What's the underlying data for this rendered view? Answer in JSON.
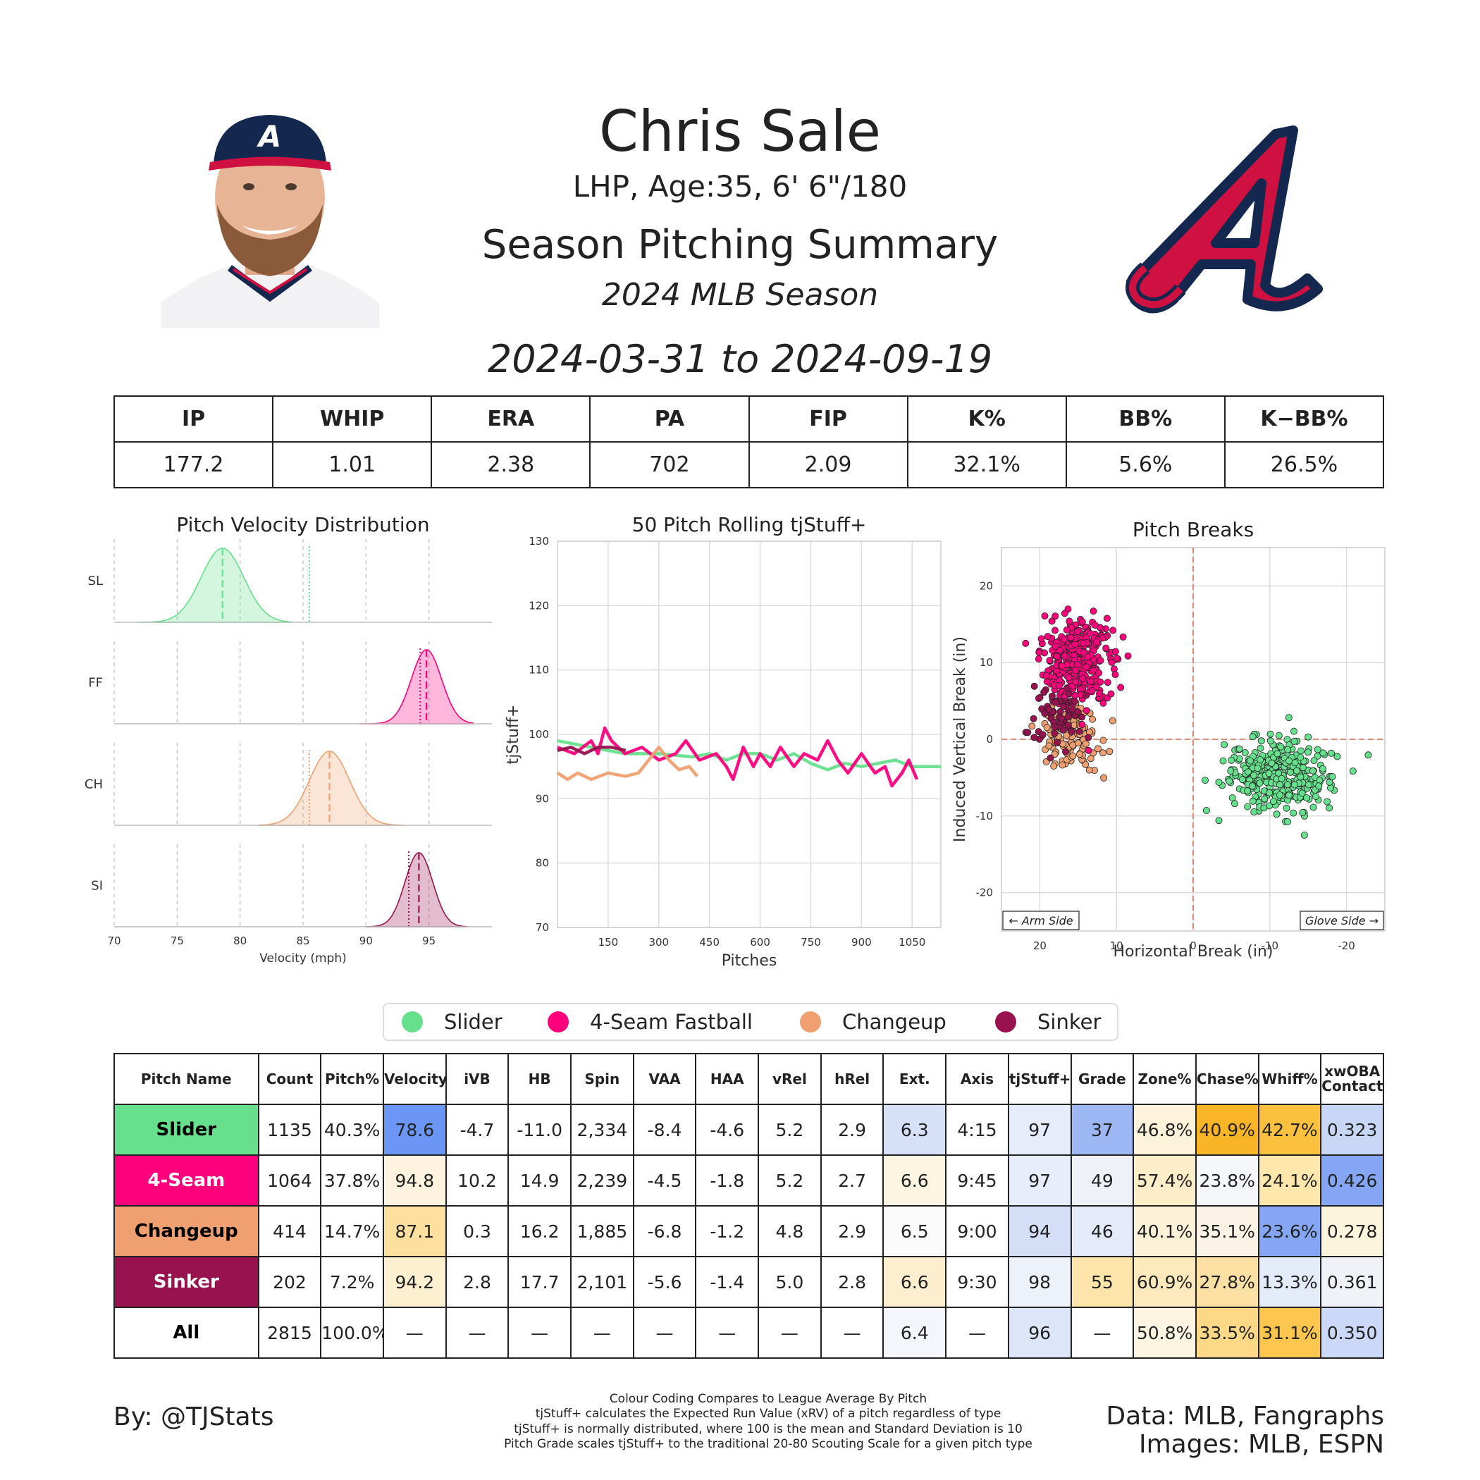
{
  "header": {
    "player_name": "Chris Sale",
    "player_info": "LHP, Age:35, 6' 6\"/180",
    "report_title": "Season Pitching Summary",
    "season": "2024 MLB Season",
    "date_range": "2024-03-31 to 2024-09-19"
  },
  "colors": {
    "Slider": "#66e08c",
    "4-Seam": "#ff007d",
    "Changeup": "#f0a070",
    "Sinker": "#981250",
    "team_primary": "#ce1141",
    "team_navy": "#13274f"
  },
  "summary": {
    "headers": [
      "IP",
      "WHIP",
      "ERA",
      "PA",
      "FIP",
      "K%",
      "BB%",
      "K−BB%"
    ],
    "values": [
      "177.2",
      "1.01",
      "2.38",
      "702",
      "2.09",
      "32.1%",
      "5.6%",
      "26.5%"
    ]
  },
  "chart_data": [
    {
      "type": "area",
      "title": "Pitch Velocity Distribution",
      "xlabel": "Velocity (mph)",
      "xlim": [
        70,
        100
      ],
      "xticks": [
        70,
        75,
        80,
        85,
        90,
        95
      ],
      "series": [
        {
          "name": "SL",
          "range": [
            72,
            84
          ],
          "mean": 78.6,
          "sd": 1.7,
          "league_avg": 85.5
        },
        {
          "name": "FF",
          "range": [
            89.5,
            98.5
          ],
          "mean": 94.8,
          "sd": 1.2,
          "league_avg": 94.3
        },
        {
          "name": "CH",
          "range": [
            81.5,
            93
          ],
          "mean": 87.1,
          "sd": 1.6,
          "league_avg": 85.5
        },
        {
          "name": "SI",
          "range": [
            90,
            98
          ],
          "mean": 94.2,
          "sd": 1.1,
          "league_avg": 93.4
        }
      ]
    },
    {
      "type": "line",
      "title": "50 Pitch Rolling tjStuff+",
      "xlabel": "Pitches",
      "ylabel": "tjStuff+",
      "xlim": [
        0,
        1135
      ],
      "ylim": [
        70,
        130
      ],
      "xticks": [
        150,
        300,
        450,
        600,
        750,
        900,
        1050
      ],
      "yticks": [
        70,
        80,
        90,
        100,
        110,
        120,
        130
      ],
      "series": [
        {
          "name": "Slider",
          "points": [
            [
              0,
              99
            ],
            [
              100,
              98
            ],
            [
              200,
              97
            ],
            [
              300,
              97
            ],
            [
              400,
              96.5
            ],
            [
              450,
              97
            ],
            [
              500,
              96
            ],
            [
              550,
              97
            ],
            [
              600,
              97
            ],
            [
              650,
              96
            ],
            [
              700,
              97
            ],
            [
              750,
              95.5
            ],
            [
              800,
              94.5
            ],
            [
              850,
              95.5
            ],
            [
              900,
              95
            ],
            [
              950,
              95.5
            ],
            [
              1000,
              96
            ],
            [
              1050,
              95
            ],
            [
              1135,
              95
            ]
          ]
        },
        {
          "name": "4-Seam Fastball",
          "points": [
            [
              0,
              98
            ],
            [
              50,
              97
            ],
            [
              100,
              99
            ],
            [
              120,
              97
            ],
            [
              140,
              101
            ],
            [
              160,
              99
            ],
            [
              200,
              97
            ],
            [
              250,
              98
            ],
            [
              300,
              96
            ],
            [
              350,
              97
            ],
            [
              380,
              99
            ],
            [
              420,
              96
            ],
            [
              470,
              97
            ],
            [
              500,
              95
            ],
            [
              520,
              93
            ],
            [
              550,
              98
            ],
            [
              580,
              95
            ],
            [
              600,
              97
            ],
            [
              630,
              95
            ],
            [
              660,
              98
            ],
            [
              700,
              95
            ],
            [
              730,
              97
            ],
            [
              770,
              96
            ],
            [
              800,
              99
            ],
            [
              830,
              96
            ],
            [
              860,
              94
            ],
            [
              900,
              97
            ],
            [
              940,
              94
            ],
            [
              970,
              95
            ],
            [
              990,
              92
            ],
            [
              1020,
              94
            ],
            [
              1040,
              96
            ],
            [
              1064,
              93
            ]
          ]
        },
        {
          "name": "Changeup",
          "points": [
            [
              0,
              94
            ],
            [
              30,
              93
            ],
            [
              60,
              94
            ],
            [
              100,
              93
            ],
            [
              150,
              94
            ],
            [
              200,
              93.5
            ],
            [
              240,
              94
            ],
            [
              270,
              96
            ],
            [
              300,
              98
            ],
            [
              330,
              96
            ],
            [
              360,
              94.5
            ],
            [
              390,
              95
            ],
            [
              414,
              93.5
            ]
          ]
        },
        {
          "name": "Sinker",
          "points": [
            [
              0,
              97.5
            ],
            [
              40,
              98
            ],
            [
              80,
              97
            ],
            [
              120,
              98
            ],
            [
              160,
              98
            ],
            [
              202,
              97.5
            ]
          ]
        }
      ]
    },
    {
      "type": "scatter",
      "title": "Pitch Breaks",
      "xlabel": "Horizontal Break (in)",
      "ylabel": "Induced Vertical Break (in)",
      "xlim": [
        25,
        -25
      ],
      "ylim": [
        -25,
        25
      ],
      "xticks": [
        20,
        10,
        0,
        -10,
        -20
      ],
      "yticks": [
        -20,
        -10,
        0,
        10,
        20
      ],
      "annotations": [
        "← Arm Side",
        "Glove Side →"
      ],
      "series": [
        {
          "name": "Slider",
          "count": 1135,
          "mean_hb": -11.0,
          "mean_ivb": -4.7
        },
        {
          "name": "4-Seam Fastball",
          "count": 1064,
          "mean_hb": 14.9,
          "mean_ivb": 10.2
        },
        {
          "name": "Changeup",
          "count": 414,
          "mean_hb": 16.2,
          "mean_ivb": 0.3
        },
        {
          "name": "Sinker",
          "count": 202,
          "mean_hb": 17.7,
          "mean_ivb": 2.8
        }
      ]
    }
  ],
  "legend": [
    "Slider",
    "4-Seam Fastball",
    "Changeup",
    "Sinker"
  ],
  "pitch_table": {
    "headers": [
      "Pitch Name",
      "Count",
      "Pitch%",
      "Velocity",
      "iVB",
      "HB",
      "Spin",
      "VAA",
      "HAA",
      "vRel",
      "hRel",
      "Ext.",
      "Axis",
      "tjStuff+",
      "Grade",
      "Zone%",
      "Chase%",
      "Whiff%",
      "xwOBA Contact"
    ],
    "rows": [
      {
        "name": "Slider",
        "cells": [
          "1135",
          "40.3%",
          "78.6",
          "-4.7",
          "-11.0",
          "2,334",
          "-8.4",
          "-4.6",
          "5.2",
          "2.9",
          "6.3",
          "4:15",
          "97",
          "37",
          "46.8%",
          "40.9%",
          "42.7%",
          "0.323"
        ]
      },
      {
        "name": "4-Seam",
        "cells": [
          "1064",
          "37.8%",
          "94.8",
          "10.2",
          "14.9",
          "2,239",
          "-4.5",
          "-1.8",
          "5.2",
          "2.7",
          "6.6",
          "9:45",
          "97",
          "49",
          "57.4%",
          "23.8%",
          "24.1%",
          "0.426"
        ]
      },
      {
        "name": "Changeup",
        "cells": [
          "414",
          "14.7%",
          "87.1",
          "0.3",
          "16.2",
          "1,885",
          "-6.8",
          "-1.2",
          "4.8",
          "2.9",
          "6.5",
          "9:00",
          "94",
          "46",
          "40.1%",
          "35.1%",
          "23.6%",
          "0.278"
        ]
      },
      {
        "name": "Sinker",
        "cells": [
          "202",
          "7.2%",
          "94.2",
          "2.8",
          "17.7",
          "2,101",
          "-5.6",
          "-1.4",
          "5.0",
          "2.8",
          "6.6",
          "9:30",
          "98",
          "55",
          "60.9%",
          "27.8%",
          "13.3%",
          "0.361"
        ]
      },
      {
        "name": "All",
        "cells": [
          "2815",
          "100.0%",
          "—",
          "—",
          "—",
          "—",
          "—",
          "—",
          "—",
          "—",
          "6.4",
          "—",
          "96",
          "—",
          "50.8%",
          "33.5%",
          "31.1%",
          "0.350"
        ]
      }
    ],
    "cell_colors": [
      [
        "",
        "",
        "#6c96f5",
        "",
        "",
        "",
        "",
        "",
        "",
        "",
        "#d6e0f7",
        "",
        "#e6ecfa",
        "#9db7f5",
        "#fdf3da",
        "#f9b526",
        "#fbc13e",
        "#c9d7f6"
      ],
      [
        "",
        "",
        "#fdf3de",
        "",
        "",
        "",
        "",
        "",
        "",
        "",
        "#fdf5e2",
        "",
        "#e7edfa",
        "#eef1f8",
        "#fdedc9",
        "#f6f7fb",
        "#fde7ad",
        "#84a6f5"
      ],
      [
        "",
        "",
        "#fde0a0",
        "",
        "",
        "",
        "",
        "",
        "",
        "",
        "#fbfbfc",
        "",
        "#d4def7",
        "#e4eafa",
        "#fdf1d8",
        "#fbf3e6",
        "#84a6f5",
        "#fdf4dd"
      ],
      [
        "",
        "",
        "#fdf0d0",
        "",
        "",
        "",
        "",
        "",
        "",
        "",
        "#fdeed0",
        "",
        "#edf1fa",
        "#fde4ab",
        "#fde9bb",
        "#fde0a4",
        "#e4ebf9",
        "#f0f2f8"
      ],
      [
        "",
        "",
        "",
        "",
        "",
        "",
        "",
        "",
        "",
        "",
        "#f4f6fb",
        "",
        "#dde5f8",
        "",
        "#fdf5e2",
        "#fdd887",
        "#fcc64f",
        "#ccd8f7"
      ]
    ]
  },
  "footer": {
    "credit_left": "By: @TJStats",
    "credit_right_1": "Data: MLB, Fangraphs",
    "credit_right_2": "Images: MLB, ESPN",
    "notes": [
      "Colour Coding Compares to League Average By Pitch",
      "tjStuff+ calculates the Expected Run Value (xRV) of a pitch regardless of type",
      "tjStuff+ is normally distributed, where 100 is the mean and Standard Deviation is 10",
      "Pitch Grade scales tjStuff+ to the traditional 20-80 Scouting Scale for a given pitch type"
    ]
  }
}
